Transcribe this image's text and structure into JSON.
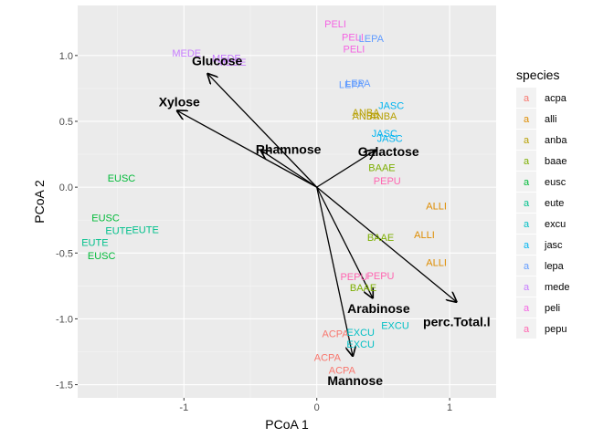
{
  "chart_data": {
    "type": "scatter",
    "xlabel": "PCoA 1",
    "ylabel": "PCoA 2",
    "xlim": [
      -1.8,
      1.35
    ],
    "ylim": [
      -1.6,
      1.38
    ],
    "xticks": [
      -1,
      0,
      1
    ],
    "xtick_labels": [
      "-1",
      "0",
      "1"
    ],
    "yticks": [
      -1.5,
      -1.0,
      -0.5,
      0.0,
      0.5,
      1.0
    ],
    "ytick_labels": [
      "-1.5",
      "-1.0",
      "-0.5",
      "0.0",
      "0.5",
      "1.0"
    ],
    "grid": true,
    "legend": {
      "title": "species",
      "placement": "right",
      "entries": [
        {
          "key": "a",
          "label": "acpa",
          "color": "#F8766D"
        },
        {
          "key": "a",
          "label": "alli",
          "color": "#DE8C00"
        },
        {
          "key": "a",
          "label": "anba",
          "color": "#B79F00"
        },
        {
          "key": "a",
          "label": "baae",
          "color": "#7CAE00"
        },
        {
          "key": "a",
          "label": "eusc",
          "color": "#00BA38"
        },
        {
          "key": "a",
          "label": "eute",
          "color": "#00C08B"
        },
        {
          "key": "a",
          "label": "excu",
          "color": "#00BFC4"
        },
        {
          "key": "a",
          "label": "jasc",
          "color": "#00B4F0"
        },
        {
          "key": "a",
          "label": "lepa",
          "color": "#619CFF"
        },
        {
          "key": "a",
          "label": "mede",
          "color": "#C77CFF"
        },
        {
          "key": "a",
          "label": "peli",
          "color": "#F564E3"
        },
        {
          "key": "a",
          "label": "pepu",
          "color": "#FF64B0"
        }
      ]
    },
    "points": [
      {
        "label": "PELI",
        "species": "peli",
        "x": 0.14,
        "y": 1.24
      },
      {
        "label": "PELI",
        "species": "peli",
        "x": 0.27,
        "y": 1.14
      },
      {
        "label": "PELI",
        "species": "peli",
        "x": 0.28,
        "y": 1.05
      },
      {
        "label": "LEPA",
        "species": "lepa",
        "x": 0.41,
        "y": 1.13
      },
      {
        "label": "LEPA",
        "species": "lepa",
        "x": 0.31,
        "y": 0.79
      },
      {
        "label": "LEPA",
        "species": "lepa",
        "x": 0.26,
        "y": 0.78
      },
      {
        "label": "MEDE",
        "species": "mede",
        "x": -0.98,
        "y": 1.02
      },
      {
        "label": "MEDE",
        "species": "mede",
        "x": -0.68,
        "y": 0.98
      },
      {
        "label": "MEDE",
        "species": "mede",
        "x": -0.64,
        "y": 0.95
      },
      {
        "label": "JASC",
        "species": "jasc",
        "x": 0.56,
        "y": 0.62
      },
      {
        "label": "JASC",
        "species": "jasc",
        "x": 0.51,
        "y": 0.41
      },
      {
        "label": "JASC",
        "species": "jasc",
        "x": 0.55,
        "y": 0.37
      },
      {
        "label": "ANBA",
        "species": "anba",
        "x": 0.37,
        "y": 0.57
      },
      {
        "label": "ANBA",
        "species": "anba",
        "x": 0.37,
        "y": 0.54
      },
      {
        "label": "ANBA",
        "species": "anba",
        "x": 0.5,
        "y": 0.54
      },
      {
        "label": "BAAE",
        "species": "baae",
        "x": 0.49,
        "y": 0.15
      },
      {
        "label": "BAAE",
        "species": "baae",
        "x": 0.48,
        "y": -0.38
      },
      {
        "label": "BAAE",
        "species": "baae",
        "x": 0.35,
        "y": -0.76
      },
      {
        "label": "PEPU",
        "species": "pepu",
        "x": 0.53,
        "y": 0.05
      },
      {
        "label": "PEPU",
        "species": "pepu",
        "x": 0.28,
        "y": -0.68
      },
      {
        "label": "PEPU",
        "species": "pepu",
        "x": 0.48,
        "y": -0.67
      },
      {
        "label": "EUSC",
        "species": "eusc",
        "x": -1.47,
        "y": 0.07
      },
      {
        "label": "EUSC",
        "species": "eusc",
        "x": -1.59,
        "y": -0.23
      },
      {
        "label": "EUSC",
        "species": "eusc",
        "x": -1.62,
        "y": -0.52
      },
      {
        "label": "EUTE",
        "species": "eute",
        "x": -1.49,
        "y": -0.33
      },
      {
        "label": "EUTE",
        "species": "eute",
        "x": -1.29,
        "y": -0.32
      },
      {
        "label": "EUTE",
        "species": "eute",
        "x": -1.67,
        "y": -0.42
      },
      {
        "label": "ALLI",
        "species": "alli",
        "x": 0.9,
        "y": -0.14
      },
      {
        "label": "ALLI",
        "species": "alli",
        "x": 0.81,
        "y": -0.36
      },
      {
        "label": "ALLI",
        "species": "alli",
        "x": 0.9,
        "y": -0.57
      },
      {
        "label": "ACPA",
        "species": "acpa",
        "x": 0.14,
        "y": -1.11
      },
      {
        "label": "ACPA",
        "species": "acpa",
        "x": 0.08,
        "y": -1.29
      },
      {
        "label": "ACPA",
        "species": "acpa",
        "x": 0.19,
        "y": -1.39
      },
      {
        "label": "EXCU",
        "species": "excu",
        "x": 0.33,
        "y": -1.1
      },
      {
        "label": "EXCU",
        "species": "excu",
        "x": 0.33,
        "y": -1.19
      },
      {
        "label": "EXCU",
        "species": "excu",
        "x": 0.59,
        "y": -1.05
      }
    ],
    "vectors": [
      {
        "label": "Glucose",
        "x": -0.82,
        "y": 0.86,
        "lx": -0.94,
        "ly": 0.96
      },
      {
        "label": "Xylose",
        "x": -1.05,
        "y": 0.58,
        "lx": -1.19,
        "ly": 0.65
      },
      {
        "label": "Rhamnose",
        "x": -0.42,
        "y": 0.28,
        "lx": -0.46,
        "ly": 0.29
      },
      {
        "label": "Galactose",
        "x": 0.44,
        "y": 0.28,
        "lx": 0.31,
        "ly": 0.27
      },
      {
        "label": "Arabinose",
        "x": 0.42,
        "y": -0.84,
        "lx": 0.23,
        "ly": -0.92
      },
      {
        "label": "Mannose",
        "x": 0.27,
        "y": -1.28,
        "lx": 0.08,
        "ly": -1.47
      },
      {
        "label": "perc.Total.l",
        "x": 1.05,
        "y": -0.87,
        "lx": 0.8,
        "ly": -1.02
      }
    ]
  }
}
